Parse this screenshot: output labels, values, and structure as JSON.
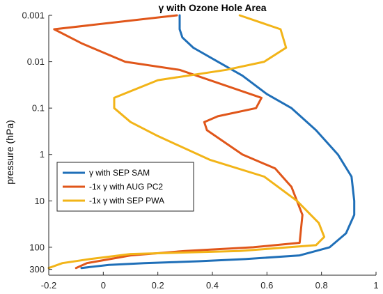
{
  "chart_data": {
    "type": "line",
    "title": "γ with Ozone Hole Area",
    "xlabel": "",
    "ylabel": "pressure (hPa)",
    "xlim": [
      -0.2,
      1.0
    ],
    "ylim": [
      0.001,
      400
    ],
    "y_scale": "log",
    "y_reversed": true,
    "grid": false,
    "legend_position": "middle-left",
    "x_ticks": [
      "-0.2",
      "0",
      "0.2",
      "0.4",
      "0.6",
      "0.8",
      "1"
    ],
    "y_ticks": [
      "0.001",
      "0.01",
      "0.1",
      "1",
      "10",
      "100",
      "300"
    ],
    "series": [
      {
        "name": "γ with SEP SAM",
        "color": "#1f6fb8",
        "x": [
          0.28,
          0.28,
          0.29,
          0.33,
          0.42,
          0.51,
          0.6,
          0.69,
          0.78,
          0.86,
          0.91,
          0.92,
          0.92,
          0.89,
          0.83,
          0.72,
          0.52,
          0.35,
          0.25,
          0.15,
          0.02,
          -0.08
        ],
        "y": [
          0.001,
          0.002,
          0.003,
          0.005,
          0.01,
          0.02,
          0.05,
          0.1,
          0.3,
          1,
          3,
          10,
          20,
          50,
          100,
          150,
          180,
          200,
          210,
          220,
          240,
          280
        ]
      },
      {
        "name": "-1x γ with AUG PC2",
        "color": "#e0561a",
        "x": [
          0.27,
          -0.18,
          -0.08,
          0.08,
          0.28,
          0.58,
          0.56,
          0.42,
          0.37,
          0.38,
          0.51,
          0.63,
          0.69,
          0.73,
          0.72,
          0.55,
          0.3,
          0.1,
          -0.06,
          -0.1
        ],
        "y": [
          0.001,
          0.002,
          0.004,
          0.01,
          0.015,
          0.06,
          0.1,
          0.15,
          0.2,
          0.3,
          1,
          2,
          5,
          20,
          80,
          100,
          120,
          150,
          220,
          280
        ]
      },
      {
        "name": "-1x γ with SEP PWA",
        "color": "#f2b418",
        "x": [
          0.5,
          0.65,
          0.67,
          0.59,
          0.45,
          0.2,
          0.04,
          0.04,
          0.1,
          0.2,
          0.39,
          0.59,
          0.71,
          0.79,
          0.81,
          0.78,
          0.68,
          0.5,
          0.1,
          -0.05,
          -0.15,
          -0.2
        ],
        "y": [
          0.001,
          0.002,
          0.005,
          0.01,
          0.015,
          0.025,
          0.06,
          0.1,
          0.2,
          0.4,
          1.3,
          3,
          10,
          30,
          60,
          90,
          100,
          120,
          140,
          180,
          220,
          280
        ]
      }
    ]
  }
}
